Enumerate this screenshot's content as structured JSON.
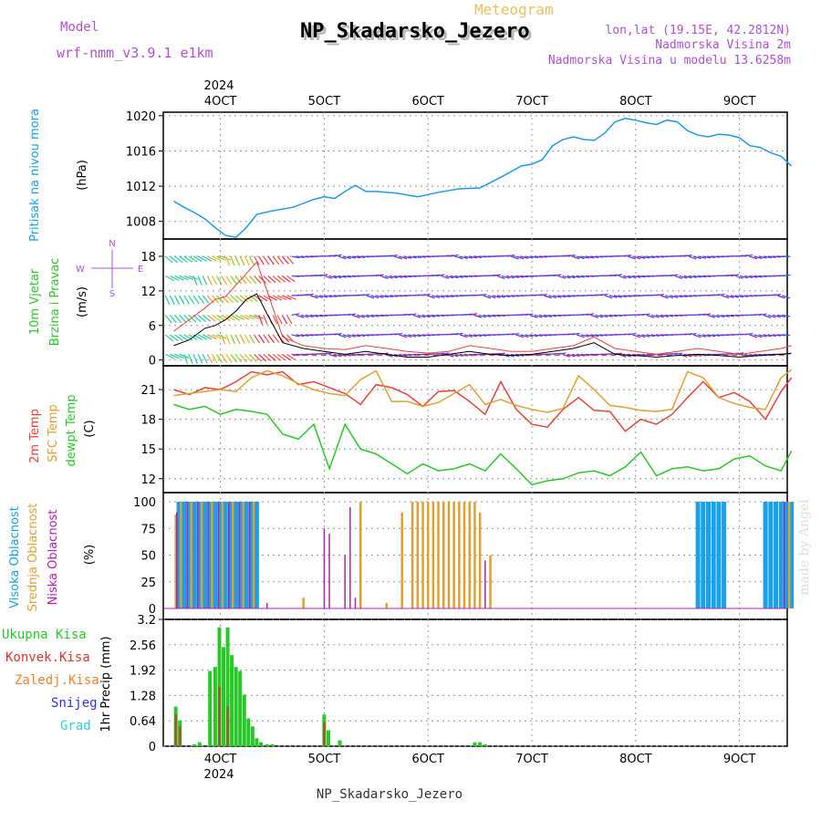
{
  "header": {
    "model_label": "Model",
    "model_name": "wrf-nmm_v3.9.1  e1km",
    "title": "NP_Skadarsko_Jezero",
    "meteogram": "Meteogram",
    "lonlat": "lon,lat (19.15E, 42.2812N)",
    "alt1": "Nadmorska Visina 2m",
    "alt2": "Nadmorska Visina u modelu 13.6258m",
    "footer": "NP_Skadarsko_Jezero",
    "watermark": "made by Angel"
  },
  "colors": {
    "pressure": "#1e9be6",
    "t2m": "#e8413a",
    "sfc": "#e0a030",
    "dewpt": "#28c828",
    "high_cloud": "#18a0e8",
    "mid_cloud": "#e0a030",
    "low_cloud": "#b020b0",
    "total_precip": "#28c828",
    "conv_precip": "#e03030",
    "frozen_precip": "#f08030",
    "snow": "#3030e0",
    "graupel": "#30d0d0",
    "label_purple": "#b050d0"
  },
  "chart_data": [
    {
      "type": "line",
      "panel": "pressure",
      "ylabel": "(hPa)",
      "side_label": "Pritisak na nivou mora",
      "x_ticks": [
        "4OCT",
        "5OCT",
        "6OCT",
        "7OCT",
        "8OCT",
        "9OCT"
      ],
      "year": "2024",
      "ylim": [
        1006,
        1020.4
      ],
      "y_ticks": [
        1008,
        1012,
        1016,
        1020
      ],
      "x_days": [
        3.55,
        3.65,
        3.75,
        3.85,
        3.95,
        4.05,
        4.15,
        4.25,
        4.35,
        4.5,
        4.7,
        4.9,
        5.0,
        5.1,
        5.2,
        5.3,
        5.4,
        5.5,
        5.7,
        5.9,
        6.1,
        6.3,
        6.5,
        6.7,
        6.9,
        7.0,
        7.1,
        7.2,
        7.3,
        7.4,
        7.5,
        7.6,
        7.7,
        7.8,
        7.9,
        8.0,
        8.1,
        8.2,
        8.3,
        8.4,
        8.5,
        8.6,
        8.7,
        8.8,
        8.9,
        9.0,
        9.1,
        9.2,
        9.3,
        9.4,
        9.5
      ],
      "values": [
        1010.3,
        1009.6,
        1009.0,
        1008.3,
        1007.3,
        1006.4,
        1006.2,
        1007.3,
        1008.8,
        1009.2,
        1009.6,
        1010.5,
        1010.8,
        1010.6,
        1011.4,
        1012.1,
        1011.4,
        1011.4,
        1011.2,
        1010.8,
        1011.3,
        1011.7,
        1011.8,
        1013.0,
        1014.3,
        1014.5,
        1015.0,
        1016.6,
        1017.3,
        1017.6,
        1017.3,
        1017.2,
        1018.0,
        1019.3,
        1019.7,
        1019.5,
        1019.2,
        1019.0,
        1019.5,
        1019.3,
        1018.3,
        1017.8,
        1017.6,
        1017.9,
        1017.8,
        1017.5,
        1016.6,
        1016.4,
        1015.8,
        1015.4,
        1014.3
      ]
    },
    {
      "type": "line",
      "panel": "wind",
      "ylabel": "(m/s)",
      "side_label_1": "10m Vjetar",
      "side_label_2": "Brzina i Pravac",
      "compass": {
        "n": "N",
        "s": "S",
        "w": "W",
        "e": "E"
      },
      "ylim": [
        -1,
        21
      ],
      "y_ticks": [
        0,
        6,
        12,
        18
      ],
      "x_days": [
        3.55,
        3.7,
        3.85,
        3.95,
        4.05,
        4.15,
        4.25,
        4.35,
        4.45,
        4.6,
        4.8,
        5.0,
        5.2,
        5.4,
        5.6,
        5.8,
        6.0,
        6.2,
        6.4,
        6.6,
        6.8,
        7.0,
        7.2,
        7.4,
        7.6,
        7.8,
        8.0,
        8.2,
        8.4,
        8.6,
        8.8,
        9.0,
        9.2,
        9.4,
        9.5
      ],
      "speed_10m": [
        2.5,
        3.5,
        5.5,
        6.0,
        7.0,
        8.5,
        10.5,
        11.5,
        8.0,
        3.0,
        2.0,
        1.5,
        1.0,
        1.5,
        1.0,
        0.5,
        0.5,
        1.0,
        1.5,
        1.0,
        0.8,
        1.0,
        1.5,
        2.0,
        3.0,
        1.0,
        0.8,
        0.5,
        0.8,
        1.0,
        0.8,
        0.5,
        0.8,
        1.0,
        1.2
      ],
      "gust": [
        5.0,
        7.0,
        9.0,
        10.5,
        11.0,
        13.0,
        15.0,
        17.0,
        12.0,
        4.0,
        2.5,
        2.0,
        1.8,
        2.5,
        2.0,
        1.5,
        1.2,
        1.5,
        2.5,
        2.0,
        1.5,
        1.5,
        2.0,
        2.5,
        4.0,
        2.0,
        1.5,
        1.0,
        1.5,
        2.0,
        1.5,
        1.0,
        1.5,
        2.0,
        2.5
      ]
    },
    {
      "type": "line",
      "panel": "temperature",
      "ylabel": "(C)",
      "side_label_1": "2m Temp",
      "side_label_2": "SFC Temp",
      "side_label_3": "dewpt Temp",
      "ylim": [
        10.6,
        23.4
      ],
      "y_ticks": [
        12,
        15,
        18,
        21
      ],
      "x_days": [
        3.55,
        3.7,
        3.85,
        4.0,
        4.15,
        4.3,
        4.45,
        4.6,
        4.75,
        4.9,
        5.05,
        5.2,
        5.35,
        5.5,
        5.65,
        5.8,
        5.95,
        6.1,
        6.25,
        6.4,
        6.55,
        6.7,
        6.85,
        7.0,
        7.15,
        7.3,
        7.45,
        7.6,
        7.75,
        7.9,
        8.05,
        8.2,
        8.35,
        8.5,
        8.65,
        8.8,
        8.95,
        9.1,
        9.25,
        9.4,
        9.5
      ],
      "series": [
        {
          "name": "2m Temp",
          "values": [
            21.0,
            20.5,
            21.2,
            21.0,
            21.8,
            22.8,
            22.5,
            22.8,
            21.5,
            21.8,
            21.2,
            20.6,
            19.5,
            21.5,
            21.2,
            20.5,
            19.3,
            20.8,
            20.9,
            19.8,
            18.5,
            21.8,
            19.0,
            17.5,
            17.2,
            19.0,
            20.2,
            18.9,
            18.8,
            16.8,
            18.0,
            17.5,
            18.5,
            20.2,
            21.8,
            20.2,
            20.7,
            19.8,
            18.0,
            20.8,
            22.2
          ]
        },
        {
          "name": "SFC Temp",
          "values": [
            20.4,
            20.6,
            20.8,
            21.0,
            20.8,
            22.2,
            22.9,
            22.4,
            21.6,
            21.0,
            20.6,
            20.4,
            22.0,
            22.9,
            19.8,
            19.8,
            19.3,
            19.7,
            20.6,
            21.5,
            19.5,
            20.0,
            19.4,
            19.0,
            18.7,
            19.1,
            22.4,
            21.0,
            19.4,
            19.2,
            18.9,
            18.8,
            19.0,
            22.8,
            22.2,
            20.2,
            19.6,
            19.2,
            19.0,
            22.2,
            23.0
          ]
        },
        {
          "name": "dewpt Temp",
          "values": [
            19.5,
            19.0,
            19.3,
            18.5,
            19.0,
            18.8,
            18.5,
            16.5,
            16.0,
            17.5,
            13.0,
            17.5,
            15.0,
            14.5,
            13.5,
            12.5,
            13.5,
            12.8,
            13.0,
            13.5,
            12.8,
            14.5,
            13.0,
            11.4,
            11.8,
            12.0,
            12.6,
            12.8,
            12.3,
            13.2,
            14.7,
            12.3,
            13.0,
            13.2,
            12.8,
            13.0,
            14.0,
            14.3,
            13.3,
            12.8,
            14.8
          ]
        }
      ]
    },
    {
      "type": "bar",
      "panel": "clouds",
      "ylabel": "(%)",
      "side_label_1": "Visoka Oblacnost",
      "side_label_2": "Srednja Oblacnost",
      "side_label_3": "Niska Oblacnost",
      "ylim": [
        0,
        100
      ],
      "y_ticks": [
        0,
        25,
        50,
        75,
        100
      ],
      "high": {
        "x_days": [
          3.6,
          3.65,
          3.7,
          3.75,
          3.8,
          3.85,
          3.9,
          3.95,
          4.0,
          4.05,
          4.1,
          4.15,
          4.2,
          4.25,
          4.3,
          4.35,
          8.6,
          8.65,
          8.7,
          8.75,
          8.8,
          8.85,
          9.25,
          9.3,
          9.35,
          9.4,
          9.45,
          9.5
        ],
        "values": [
          100,
          100,
          100,
          100,
          100,
          100,
          100,
          100,
          100,
          100,
          100,
          100,
          100,
          100,
          100,
          100,
          100,
          100,
          100,
          100,
          100,
          100,
          100,
          100,
          100,
          100,
          100,
          100
        ]
      },
      "mid": {
        "x_days": [
          3.57,
          3.62,
          3.72,
          3.82,
          3.92,
          4.02,
          4.12,
          4.22,
          4.32,
          4.8,
          5.35,
          5.6,
          5.75,
          5.85,
          5.9,
          5.95,
          6.0,
          6.05,
          6.1,
          6.15,
          6.2,
          6.25,
          6.3,
          6.35,
          6.4,
          6.45,
          6.5,
          6.6,
          9.48
        ],
        "values": [
          88,
          100,
          100,
          100,
          100,
          100,
          100,
          100,
          100,
          10,
          100,
          5,
          90,
          100,
          100,
          100,
          100,
          100,
          100,
          100,
          100,
          100,
          100,
          100,
          100,
          100,
          90,
          50,
          100
        ]
      },
      "low": {
        "x_days": [
          3.58,
          3.68,
          3.78,
          3.88,
          3.98,
          4.08,
          4.18,
          4.28,
          4.45,
          5.0,
          5.05,
          5.2,
          5.25,
          5.3,
          6.55,
          9.43
        ],
        "values": [
          90,
          100,
          100,
          100,
          100,
          100,
          100,
          100,
          5,
          75,
          70,
          50,
          95,
          10,
          45,
          100
        ]
      }
    },
    {
      "type": "bar",
      "panel": "precip",
      "ylabel": "1hr Precip (mm)",
      "legend": [
        "Ukupna Kisa",
        "Konvek.Kisa",
        "Zaledj.Kisa",
        "Snijeg",
        "Grad"
      ],
      "ylim": [
        0,
        3.2
      ],
      "y_ticks": [
        0,
        0.64,
        1.28,
        1.92,
        2.56,
        3.2
      ],
      "x_ticks_bottom": [
        "4OCT",
        "5OCT",
        "6OCT",
        "7OCT",
        "8OCT",
        "9OCT"
      ],
      "year_bottom": "2024",
      "total": {
        "x_days": [
          3.57,
          3.61,
          3.75,
          3.8,
          3.9,
          3.95,
          3.99,
          4.03,
          4.07,
          4.11,
          4.15,
          4.19,
          4.23,
          4.27,
          4.31,
          4.35,
          4.39,
          4.45,
          4.5,
          5.0,
          5.04,
          5.15,
          6.45,
          6.5,
          6.55
        ],
        "values": [
          1.0,
          0.65,
          0.05,
          0.1,
          1.9,
          2.0,
          3.0,
          2.5,
          3.0,
          2.3,
          2.0,
          1.9,
          1.3,
          0.7,
          0.5,
          0.2,
          0.1,
          0.05,
          0.05,
          0.8,
          0.4,
          0.15,
          0.1,
          0.1,
          0.05
        ]
      },
      "convective": {
        "x_days": [
          3.57,
          3.61,
          3.99,
          4.07,
          5.0
        ],
        "values": [
          0.8,
          0.5,
          1.5,
          1.0,
          0.6
        ]
      }
    }
  ]
}
